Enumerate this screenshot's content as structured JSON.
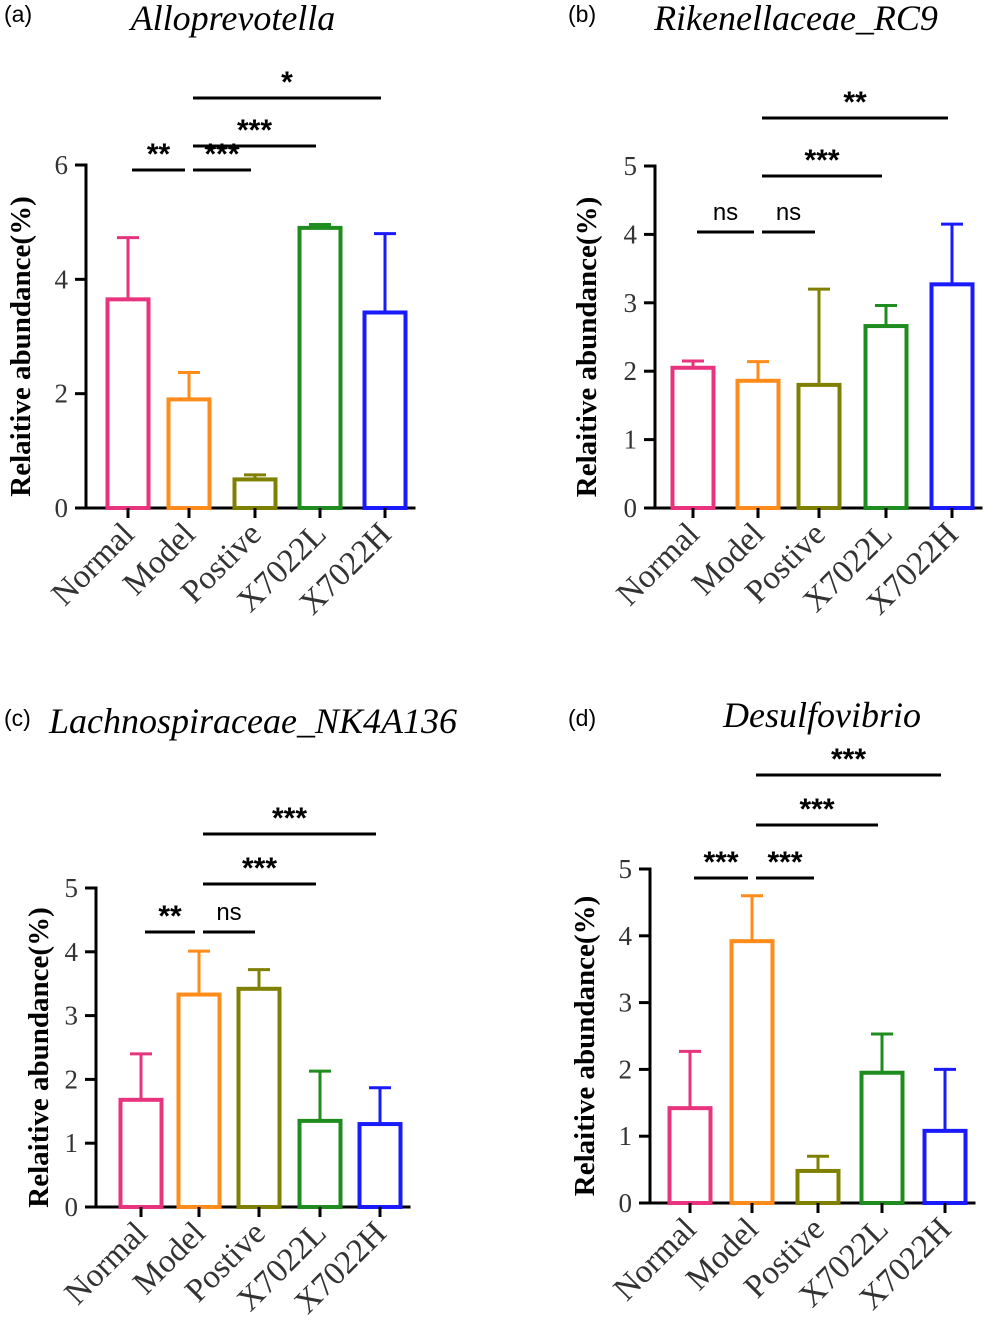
{
  "chart_data": [
    {
      "panel": "(a)",
      "type": "bar",
      "title": "Alloprevotella",
      "ylabel": "Relaitive abundance(%)",
      "xlabel": "",
      "categories": [
        "Normal",
        "Model",
        "Postive",
        "X7022L",
        "X7022H"
      ],
      "values": [
        3.65,
        1.9,
        0.5,
        4.9,
        3.42
      ],
      "errors": [
        1.08,
        0.47,
        0.08,
        0.06,
        1.38
      ],
      "colors": [
        "#e8337e",
        "#ff8c1a",
        "#808000",
        "#1e8c1e",
        "#1a1aff"
      ],
      "ylim": [
        0,
        6
      ],
      "yticks": [
        0,
        2,
        4,
        6
      ],
      "significance": [
        {
          "from": 0,
          "to": 1,
          "label": "**"
        },
        {
          "from": 1,
          "to": 2,
          "label": "***"
        },
        {
          "from": 1,
          "to": 3,
          "label": "***"
        },
        {
          "from": 1,
          "to": 4,
          "label": "*"
        }
      ]
    },
    {
      "panel": "(b)",
      "type": "bar",
      "title": "Rikenellaceae_RC9",
      "ylabel": "Relaitive abundance(%)",
      "xlabel": "",
      "categories": [
        "Normal",
        "Model",
        "Postive",
        "X7022L",
        "X7022H"
      ],
      "values": [
        2.05,
        1.86,
        1.8,
        2.66,
        3.27
      ],
      "errors": [
        0.1,
        0.28,
        1.4,
        0.3,
        0.88
      ],
      "colors": [
        "#e8337e",
        "#ff8c1a",
        "#808000",
        "#1e8c1e",
        "#1a1aff"
      ],
      "ylim": [
        0,
        5
      ],
      "yticks": [
        0,
        1,
        2,
        3,
        4,
        5
      ],
      "significance": [
        {
          "from": 0,
          "to": 1,
          "label": "ns"
        },
        {
          "from": 1,
          "to": 2,
          "label": "ns"
        },
        {
          "from": 1,
          "to": 3,
          "label": "***"
        },
        {
          "from": 1,
          "to": 4,
          "label": "**"
        }
      ]
    },
    {
      "panel": "(c)",
      "type": "bar",
      "title": "Lachnospiraceae_NK4A136",
      "ylabel": "Relaitive abundance(%)",
      "xlabel": "",
      "categories": [
        "Normal",
        "Model",
        "Postive",
        "X7022L",
        "X7022H"
      ],
      "values": [
        1.68,
        3.33,
        3.42,
        1.35,
        1.3
      ],
      "errors": [
        0.72,
        0.68,
        0.3,
        0.78,
        0.57
      ],
      "colors": [
        "#e8337e",
        "#ff8c1a",
        "#808000",
        "#1e8c1e",
        "#1a1aff"
      ],
      "ylim": [
        0,
        5
      ],
      "yticks": [
        0,
        1,
        2,
        3,
        4,
        5
      ],
      "significance": [
        {
          "from": 0,
          "to": 1,
          "label": "**"
        },
        {
          "from": 1,
          "to": 2,
          "label": "ns"
        },
        {
          "from": 1,
          "to": 3,
          "label": "***"
        },
        {
          "from": 1,
          "to": 4,
          "label": "***"
        }
      ]
    },
    {
      "panel": "(d)",
      "type": "bar",
      "title": "Desulfovibrio",
      "ylabel": "Relaitive abundance(%)",
      "xlabel": "",
      "categories": [
        "Normal",
        "Model",
        "Postive",
        "X7022L",
        "X7022H"
      ],
      "values": [
        1.42,
        3.92,
        0.48,
        1.95,
        1.08
      ],
      "errors": [
        0.85,
        0.68,
        0.22,
        0.58,
        0.92
      ],
      "colors": [
        "#e8337e",
        "#ff8c1a",
        "#808000",
        "#1e8c1e",
        "#1a1aff"
      ],
      "ylim": [
        0,
        5
      ],
      "yticks": [
        0,
        1,
        2,
        3,
        4,
        5
      ],
      "significance": [
        {
          "from": 0,
          "to": 1,
          "label": "***"
        },
        {
          "from": 1,
          "to": 2,
          "label": "***"
        },
        {
          "from": 1,
          "to": 3,
          "label": "***"
        },
        {
          "from": 1,
          "to": 4,
          "label": "***"
        }
      ]
    }
  ]
}
